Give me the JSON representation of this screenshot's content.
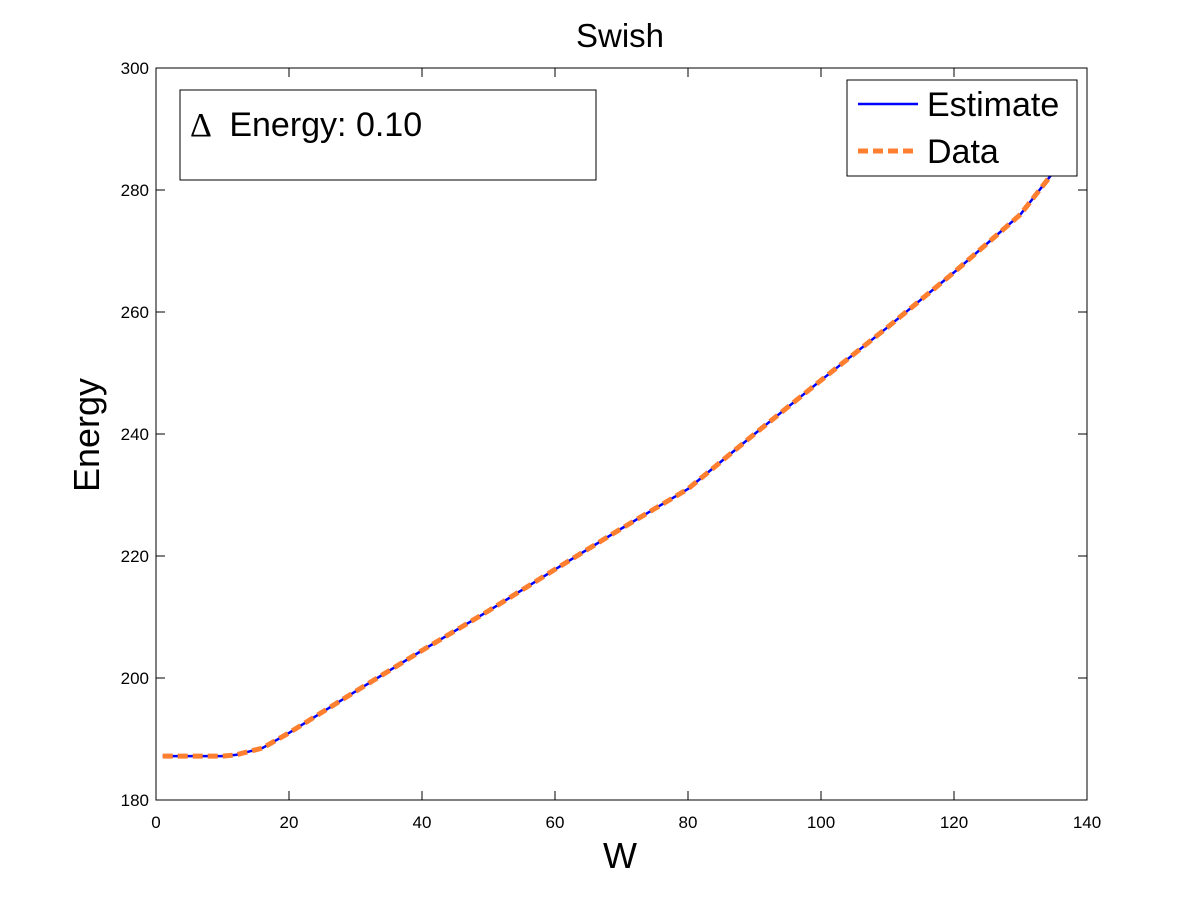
{
  "chart_data": {
    "type": "line",
    "title": "Swish",
    "xlabel": "W",
    "ylabel": "Energy",
    "xlim": [
      0,
      140
    ],
    "ylim": [
      180,
      300
    ],
    "xticks": [
      0,
      20,
      40,
      60,
      80,
      100,
      120,
      140
    ],
    "yticks": [
      180,
      200,
      220,
      240,
      260,
      280,
      300
    ],
    "grid": false,
    "legend_position": "top-right",
    "annotation": {
      "symbol": "Δ",
      "text": "Energy: 0.10"
    },
    "series": [
      {
        "name": "Estimate",
        "color": "#0000ff",
        "style": "solid",
        "x": [
          1,
          5,
          10,
          12,
          16,
          20,
          30,
          40,
          50,
          60,
          70,
          80,
          90,
          100,
          110,
          120,
          130,
          135
        ],
        "y": [
          187.2,
          187.2,
          187.2,
          187.4,
          188.5,
          191.0,
          197.8,
          204.5,
          211.0,
          217.8,
          224.5,
          231.0,
          240.0,
          248.8,
          257.5,
          266.5,
          276.0,
          283.0
        ]
      },
      {
        "name": "Data",
        "color": "#ff7f30",
        "style": "dashed",
        "x": [
          1,
          5,
          10,
          12,
          16,
          20,
          30,
          40,
          50,
          60,
          70,
          80,
          90,
          100,
          110,
          120,
          130,
          135
        ],
        "y": [
          187.2,
          187.2,
          187.2,
          187.4,
          188.5,
          191.0,
          197.8,
          204.5,
          211.0,
          217.8,
          224.5,
          231.0,
          240.0,
          248.8,
          257.5,
          266.5,
          276.0,
          283.0
        ]
      }
    ]
  }
}
